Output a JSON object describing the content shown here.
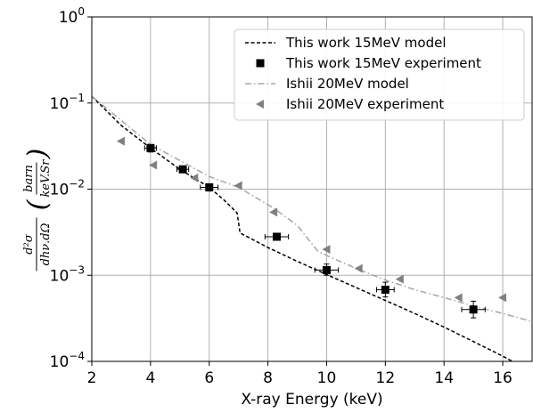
{
  "chart_data": {
    "type": "scatter",
    "title": "",
    "xlabel": "X-ray Energy (keV)",
    "ylabel": {
      "numerator": "d²σ",
      "denominator": "dhν.dΩ",
      "unit_numerator": "barn",
      "unit_denominator": "keV.Sr"
    },
    "xlim": [
      2,
      17
    ],
    "ylim": [
      0.0001,
      1
    ],
    "yscale": "log",
    "grid": true,
    "legend_position": "top-right",
    "xticks": [
      2,
      4,
      6,
      8,
      10,
      12,
      14,
      16
    ],
    "xtick_labels": [
      "2",
      "4",
      "6",
      "8",
      "10",
      "12",
      "14",
      "16"
    ],
    "yticks": [
      {
        "value": 0.0001,
        "base": "10",
        "exp": "−4"
      },
      {
        "value": 0.001,
        "base": "10",
        "exp": "−3"
      },
      {
        "value": 0.01,
        "base": "10",
        "exp": "−2"
      },
      {
        "value": 0.1,
        "base": "10",
        "exp": "−1"
      },
      {
        "value": 1,
        "base": "10",
        "exp": "0"
      }
    ],
    "series": [
      {
        "name": "This work 15MeV model",
        "style": "dashed-line",
        "color": "#000000",
        "x": [
          2,
          3,
          4,
          5,
          6,
          6.5,
          6.95,
          7.05,
          8,
          9,
          10,
          11,
          12,
          13,
          14,
          15,
          16,
          17
        ],
        "y": [
          0.12,
          0.055,
          0.03,
          0.017,
          0.0105,
          0.0075,
          0.0053,
          0.0031,
          0.0021,
          0.00145,
          0.00102,
          0.00072,
          0.00051,
          0.00036,
          0.00025,
          0.00017,
          0.000115,
          7.5e-05
        ]
      },
      {
        "name": "This work 15MeV experiment",
        "style": "square-markers-with-errorbars",
        "color": "#000000",
        "x": [
          4.0,
          5.1,
          6.0,
          8.3,
          10.0,
          12.0,
          15.0
        ],
        "y": [
          0.03,
          0.017,
          0.0105,
          0.0028,
          0.00115,
          0.00068,
          0.0004
        ],
        "xerr": [
          0.2,
          0.2,
          0.3,
          0.4,
          0.4,
          0.3,
          0.4
        ],
        "yerr_low": [
          0.003,
          0.0015,
          0.001,
          0.0002,
          0.00015,
          0.00012,
          8e-05
        ],
        "yerr_high": [
          0.003,
          0.0015,
          0.001,
          0.0002,
          0.0002,
          0.00015,
          0.0001
        ]
      },
      {
        "name": "Ishii 20MeV model",
        "style": "dashdot-line",
        "color": "#a6a6a6",
        "x": [
          2,
          4,
          6,
          7,
          8.2,
          9,
          9.7,
          10,
          11,
          12,
          13,
          14,
          15,
          16,
          17
        ],
        "y": [
          0.12,
          0.033,
          0.014,
          0.0105,
          0.006,
          0.0038,
          0.0019,
          0.0017,
          0.0012,
          0.00088,
          0.00068,
          0.00055,
          0.00044,
          0.00036,
          0.00029
        ]
      },
      {
        "name": "Ishii 20MeV experiment",
        "style": "left-triangle-markers",
        "color": "#808080",
        "x": [
          3.0,
          4.1,
          5.5,
          7.0,
          8.2,
          10.0,
          11.1,
          12.5,
          14.5,
          16.0
        ],
        "y": [
          0.036,
          0.019,
          0.0135,
          0.011,
          0.0054,
          0.002,
          0.0012,
          0.0009,
          0.00055,
          0.00055
        ]
      }
    ]
  }
}
